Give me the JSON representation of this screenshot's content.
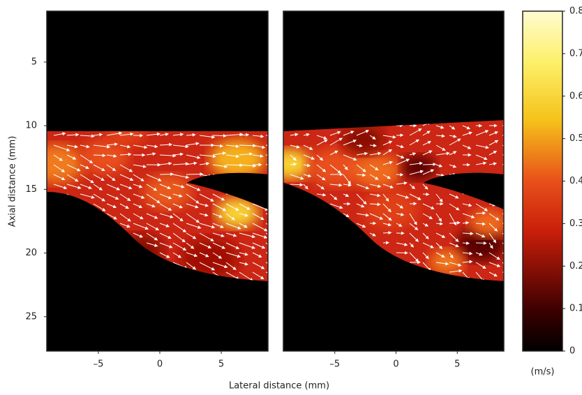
{
  "chart_data": [
    {
      "type": "heatmap",
      "xlabel": "Lateral distance (mm)",
      "ylabel": "Axial distance (mm)",
      "xlim": [
        -9.2,
        8.8
      ],
      "ylim": [
        1,
        27.7
      ],
      "xticks": [
        {
          "value": -5,
          "label": "–5"
        },
        0,
        5
      ],
      "yticks": [
        5,
        10,
        15,
        20,
        25
      ]
    },
    {
      "type": "heatmap",
      "xlim": [
        -9.2,
        8.8
      ],
      "ylim": [
        1,
        27.7
      ],
      "xticks": [
        {
          "value": -5,
          "label": "–5"
        },
        0,
        5
      ]
    },
    {
      "type": "colorbar",
      "unit": "(m/s)",
      "colormap": "hot",
      "ylim": [
        0,
        0.8
      ],
      "yticks": [
        0,
        0.1,
        0.2,
        0.3,
        0.4,
        0.5,
        0.6,
        0.7,
        0.8
      ]
    }
  ]
}
